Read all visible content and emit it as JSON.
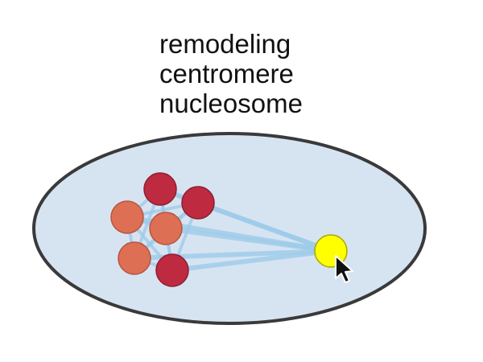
{
  "labels": [
    "remodeling",
    "centromere",
    "nucleosome"
  ],
  "colors": {
    "cell_fill": "#d6e4f2",
    "cell_stroke": "#3a3a3a",
    "edge": "#9ecae8",
    "node_dark": "#be2a3f",
    "node_light": "#dd6f55",
    "hub": "#ffff00",
    "hub_stroke": "#a8a800"
  },
  "nodes": [
    {
      "name": "node-1",
      "color": "dark"
    },
    {
      "name": "node-2",
      "color": "dark"
    },
    {
      "name": "node-3",
      "color": "light"
    },
    {
      "name": "node-4",
      "color": "light"
    },
    {
      "name": "node-5",
      "color": "light"
    },
    {
      "name": "node-6",
      "color": "dark"
    }
  ],
  "hub": {
    "name": "query-node",
    "color": "hub"
  }
}
